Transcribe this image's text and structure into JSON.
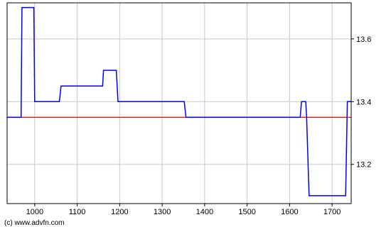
{
  "chart_data": {
    "type": "line",
    "xlim": [
      935,
      1745
    ],
    "ylim": [
      13.075,
      13.715
    ],
    "grid": true,
    "x_ticks": [
      1000,
      1100,
      1200,
      1300,
      1400,
      1500,
      1600,
      1700
    ],
    "x_tick_labels": [
      "1000",
      "1100",
      "1200",
      "1300",
      "1400",
      "1500",
      "1600",
      "1700"
    ],
    "y_ticks": [
      13.2,
      13.4,
      13.6
    ],
    "y_tick_labels": [
      "13.2",
      "13.4",
      "13.6"
    ],
    "y_axis_side": "right",
    "reference_line": {
      "value": 13.35,
      "color": "#ff0000"
    },
    "series": [
      {
        "color": "#0000ff",
        "x": [
          935,
          968,
          970,
          998,
          1000,
          1058,
          1062,
          1160,
          1162,
          1192,
          1196,
          1352,
          1356,
          1625,
          1628,
          1638,
          1640,
          1646,
          1732,
          1736,
          1745
        ],
        "y": [
          13.35,
          13.35,
          13.7,
          13.7,
          13.4,
          13.4,
          13.45,
          13.45,
          13.5,
          13.5,
          13.4,
          13.4,
          13.35,
          13.35,
          13.4,
          13.4,
          13.35,
          13.1,
          13.1,
          13.4,
          13.4
        ]
      }
    ]
  },
  "credit": "(c) www.advfn.com",
  "colors": {
    "grid": "#c8c8c8",
    "frame": "#000000"
  }
}
